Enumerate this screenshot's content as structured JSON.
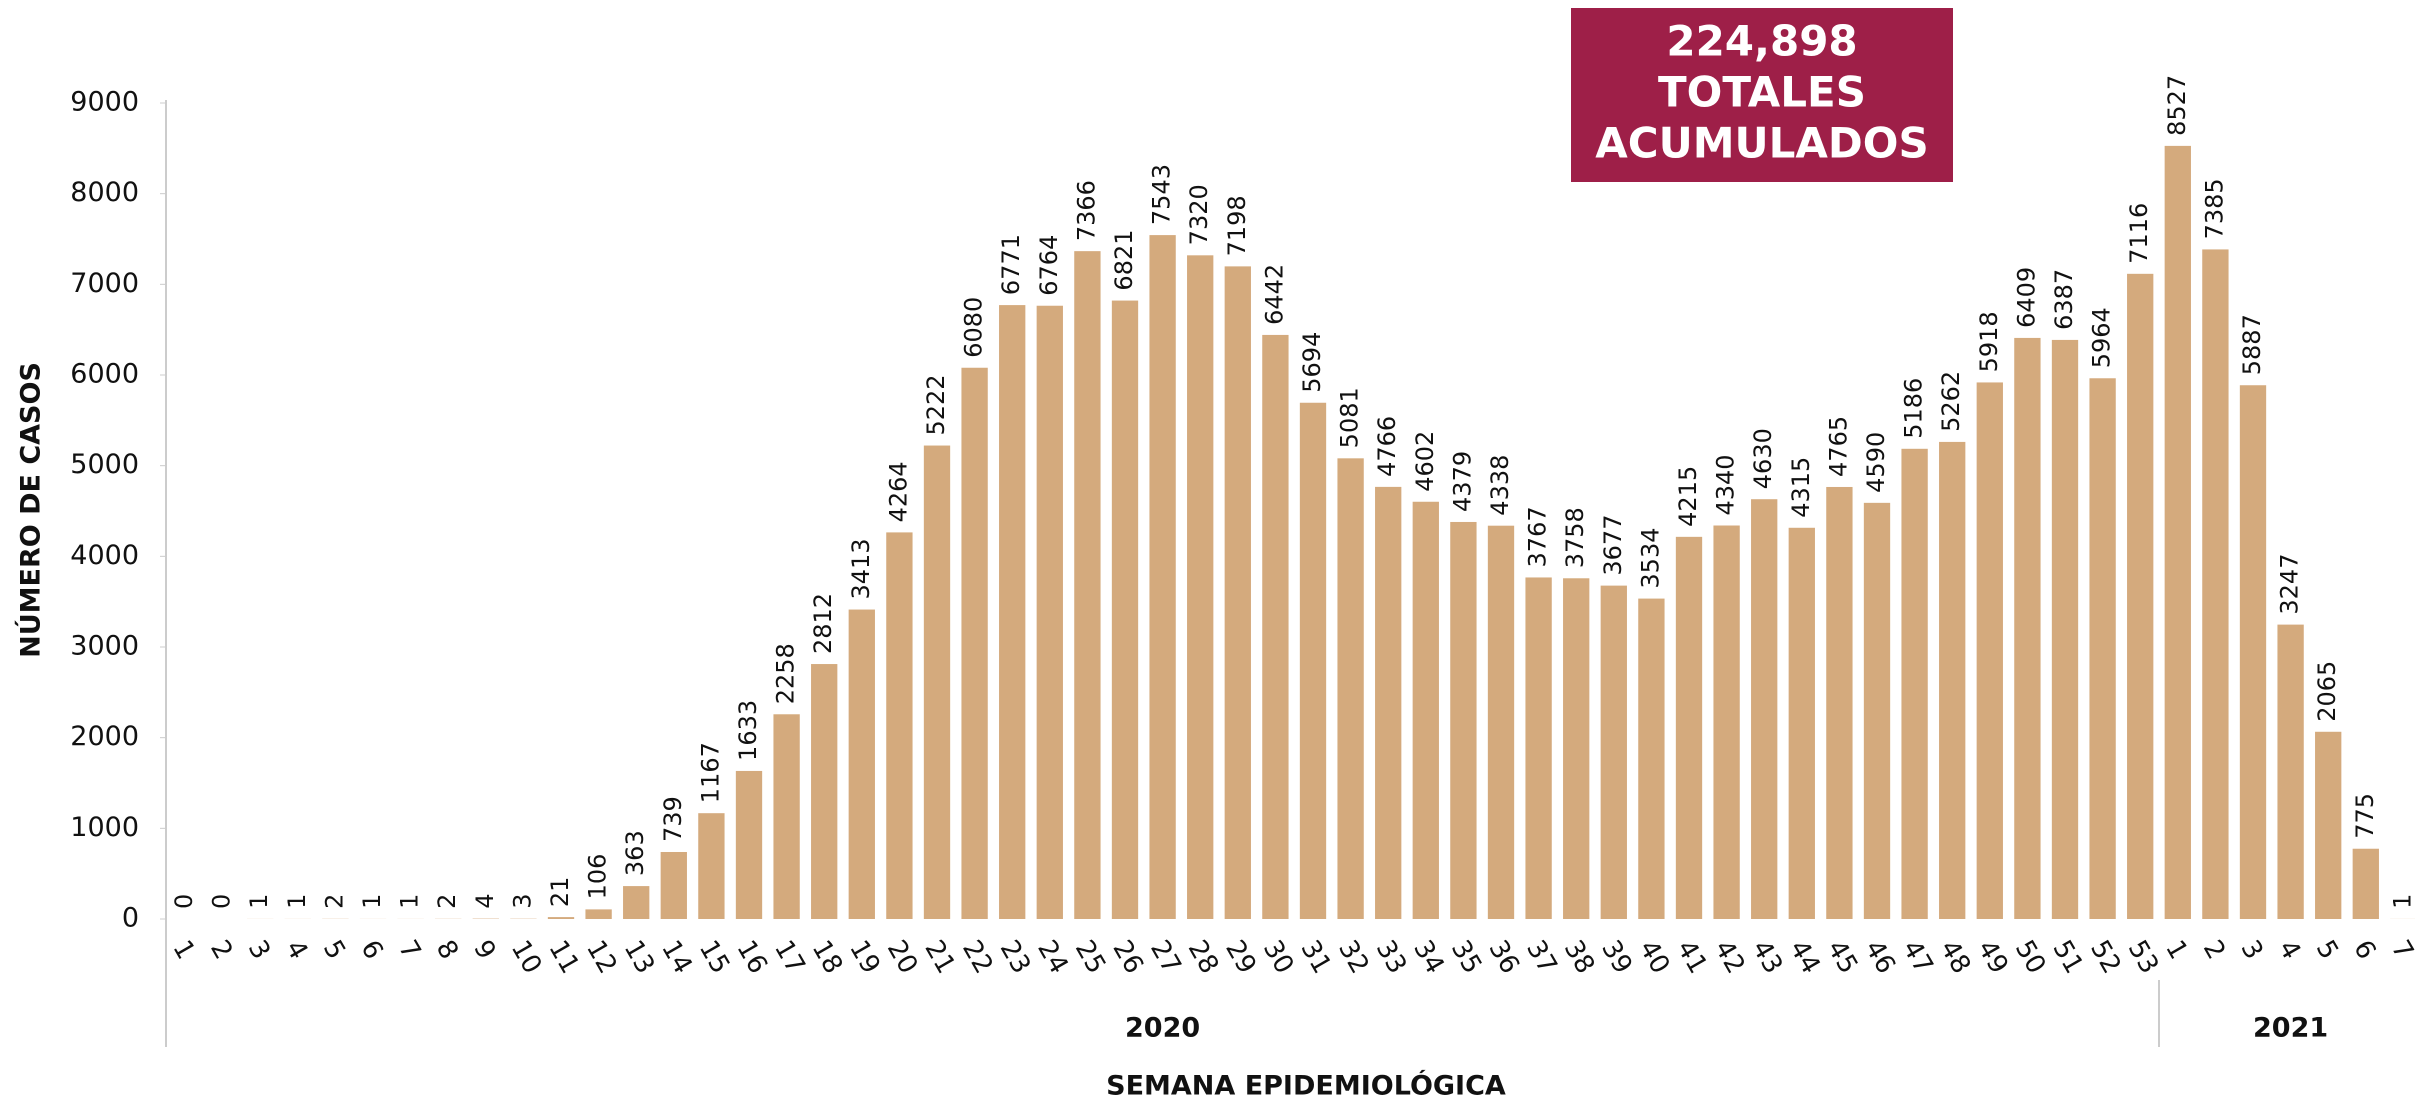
{
  "chart_data": {
    "type": "bar",
    "annotation": [
      "224,898",
      "TOTALES",
      "ACUMULADOS"
    ],
    "y_axis_label": "NÚMERO DE CASOS",
    "x_axis_label": "SEMANA EPIDEMIOLÓGICA",
    "color": "#d4aa7d",
    "ylim": [
      0,
      9000
    ],
    "yticks": [
      0,
      1000,
      2000,
      3000,
      4000,
      5000,
      6000,
      7000,
      8000,
      9000
    ],
    "groups": [
      {
        "label": "2020",
        "categories": [
          "1",
          "2",
          "3",
          "4",
          "5",
          "6",
          "7",
          "8",
          "9",
          "10",
          "11",
          "12",
          "13",
          "14",
          "15",
          "16",
          "17",
          "18",
          "19",
          "20",
          "21",
          "22",
          "23",
          "24",
          "25",
          "26",
          "27",
          "28",
          "29",
          "30",
          "31",
          "32",
          "33",
          "34",
          "35",
          "36",
          "37",
          "38",
          "39",
          "40",
          "41",
          "42",
          "43",
          "44",
          "45",
          "46",
          "47",
          "48",
          "49",
          "50",
          "51",
          "52",
          "53"
        ],
        "values": [
          0,
          0,
          1,
          1,
          2,
          1,
          1,
          2,
          4,
          3,
          21,
          106,
          363,
          739,
          1167,
          1633,
          2258,
          2812,
          3413,
          4264,
          5222,
          6080,
          6771,
          6764,
          7366,
          6821,
          7543,
          7320,
          7198,
          6442,
          5694,
          5081,
          4766,
          4602,
          4379,
          4338,
          3767,
          3758,
          3677,
          3534,
          4215,
          4340,
          4630,
          4315,
          4765,
          4590,
          5186,
          5262,
          5918,
          6409,
          6387,
          5964,
          7116
        ]
      },
      {
        "label": "2021",
        "categories": [
          "1",
          "2",
          "3",
          "4",
          "5",
          "6",
          "7"
        ],
        "values": [
          8527,
          7385,
          5887,
          3247,
          2065,
          775,
          1
        ]
      }
    ]
  }
}
